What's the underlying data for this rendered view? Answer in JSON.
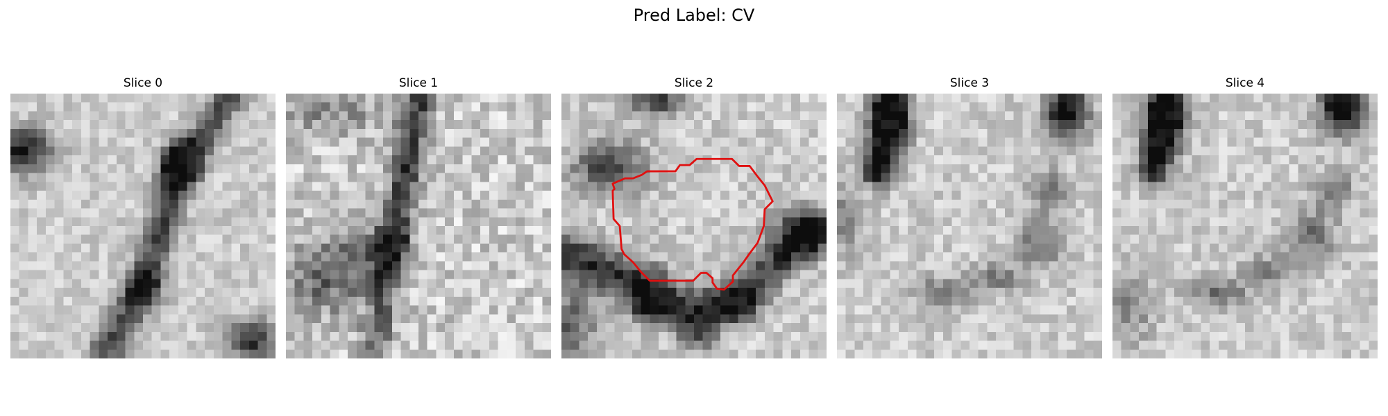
{
  "figure": {
    "title": "Pred Label: CV"
  },
  "panels": [
    {
      "title": "Slice 0",
      "pattern": "slice0",
      "has_contour": false
    },
    {
      "title": "Slice 1",
      "pattern": "slice1",
      "has_contour": false
    },
    {
      "title": "Slice 2",
      "pattern": "slice2",
      "has_contour": true
    },
    {
      "title": "Slice 3",
      "pattern": "slice3",
      "has_contour": false
    },
    {
      "title": "Slice 4",
      "pattern": "slice4",
      "has_contour": false
    }
  ],
  "colors": {
    "contour": "#e01010",
    "colormap": "grayscale"
  }
}
